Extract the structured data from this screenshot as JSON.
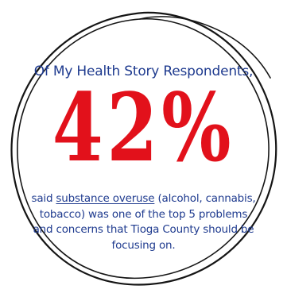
{
  "graphic": {
    "intro_line": "Of My Health Story Respondents,",
    "big_stat": "42%",
    "body_before": "said ",
    "body_underlined": "substance overuse",
    "body_after": " (alcohol, cannabis, tobacco) was one of the top 5 problems and concerns that Tioga County should be focusing on."
  },
  "colors": {
    "text_blue": "#1f3b8f",
    "stat_red": "#e2111b",
    "circle_stroke": "#151515",
    "background": "#ffffff"
  },
  "icons": {
    "frame": "hand-drawn-circle-icon"
  }
}
